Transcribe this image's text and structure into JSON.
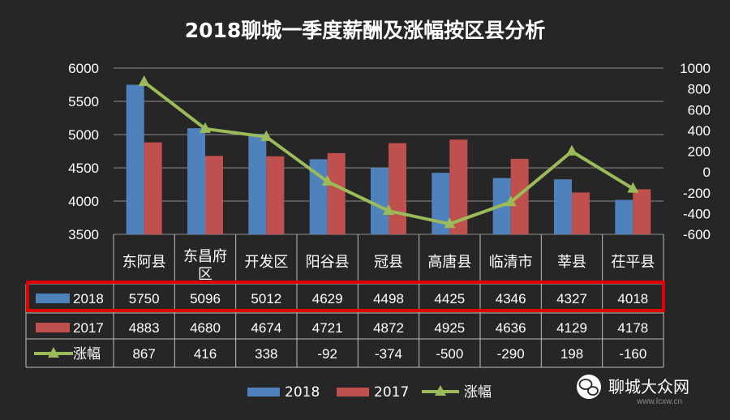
{
  "chart_data": {
    "type": "bar",
    "title": "2018聊城一季度薪酬及涨幅按区县分析",
    "categories": [
      "东阿县",
      [
        "东昌府",
        "区"
      ],
      "开发区",
      "阳谷县",
      "冠县",
      "高唐县",
      "临清市",
      "莘县",
      "茌平县"
    ],
    "series": [
      {
        "name": "2018",
        "kind": "bar",
        "axis": "left",
        "color": "#4f81bd",
        "values": [
          5750,
          5096,
          5012,
          4629,
          4498,
          4425,
          4346,
          4327,
          4018
        ]
      },
      {
        "name": "2017",
        "kind": "bar",
        "axis": "left",
        "color": "#c0504d",
        "values": [
          4883,
          4680,
          4674,
          4721,
          4872,
          4925,
          4636,
          4129,
          4178
        ]
      },
      {
        "name": "涨幅",
        "kind": "line",
        "axis": "right",
        "color": "#9bbb59",
        "values": [
          867,
          416,
          338,
          -92,
          -374,
          -500,
          -290,
          198,
          -160
        ]
      }
    ],
    "y_left": {
      "min": 3500,
      "max": 6000,
      "ticks": [
        6000,
        5500,
        5000,
        4500,
        4000,
        3500
      ]
    },
    "y_right": {
      "min": -600,
      "max": 1000,
      "ticks": [
        1000,
        800,
        600,
        400,
        200,
        0,
        -200,
        -400,
        -600
      ]
    },
    "data_table": true,
    "highlighted_row": "2018",
    "legend": [
      "2018",
      "2017",
      "涨幅"
    ],
    "legend_position": "bottom"
  },
  "watermark": {
    "name": "聊城大众网",
    "url": "www.lcxw.cn"
  },
  "colors": {
    "background": "#262626",
    "highlight_box": "#e00000"
  }
}
